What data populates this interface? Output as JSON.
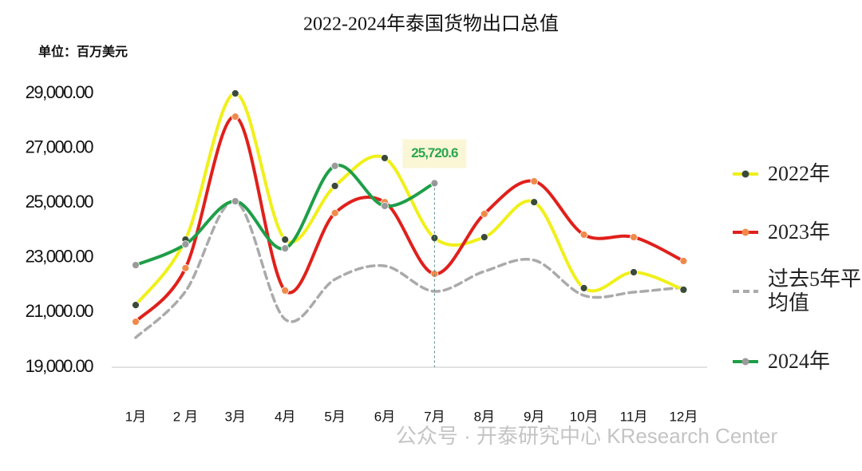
{
  "chart_data": {
    "type": "line",
    "title": "2022-2024年泰国货物出口总值",
    "unit_label": "单位：百万美元",
    "watermark": "公众号 · 开泰研究中心 KResearch Center",
    "categories": [
      "1月",
      "2 月",
      "3月",
      "4月",
      "5月",
      "6月",
      "7月",
      "8月",
      "9月",
      "10月",
      "11月",
      "12月"
    ],
    "ylim": [
      19000,
      29000
    ],
    "yticks": [
      {
        "value": 19000,
        "label": "19,000.00"
      },
      {
        "value": 21000,
        "label": "21,000.00"
      },
      {
        "value": 23000,
        "label": "23,000.00"
      },
      {
        "value": 25000,
        "label": "25,000.00"
      },
      {
        "value": 27000,
        "label": "27,000.00"
      },
      {
        "value": 29000,
        "label": "29,000.00"
      }
    ],
    "grid": false,
    "legend": "right",
    "smooth": true,
    "series": [
      {
        "name": "2022年",
        "color": "#f0f01a",
        "marker_color": "#3a4a3a",
        "dashed": false,
        "values": [
          21270,
          23660,
          29000,
          23660,
          25620,
          26640,
          23720,
          23750,
          25030,
          21890,
          22470,
          21830
        ]
      },
      {
        "name": "2023年",
        "color": "#e0201b",
        "marker_color": "#f08a4a",
        "dashed": false,
        "values": [
          20660,
          22620,
          28150,
          21800,
          24630,
          25030,
          22410,
          24600,
          25790,
          23840,
          23750,
          22880
        ]
      },
      {
        "name": "过去5年平均值",
        "color": "#aaaaaa",
        "marker_color": null,
        "dashed": true,
        "values": [
          20080,
          21770,
          25060,
          20750,
          22210,
          22700,
          21770,
          22500,
          22910,
          21620,
          21740,
          21920
        ]
      },
      {
        "name": "2024年",
        "color": "#1e9e48",
        "marker_color": "#9a9a9a",
        "dashed": false,
        "values": [
          22730,
          23490,
          25060,
          23340,
          26350,
          24890,
          25720.6,
          null,
          null,
          null,
          null,
          null
        ],
        "value_labels": [
          null,
          null,
          null,
          null,
          null,
          null,
          "25,720.6",
          null,
          null,
          null,
          null,
          null
        ]
      }
    ]
  }
}
